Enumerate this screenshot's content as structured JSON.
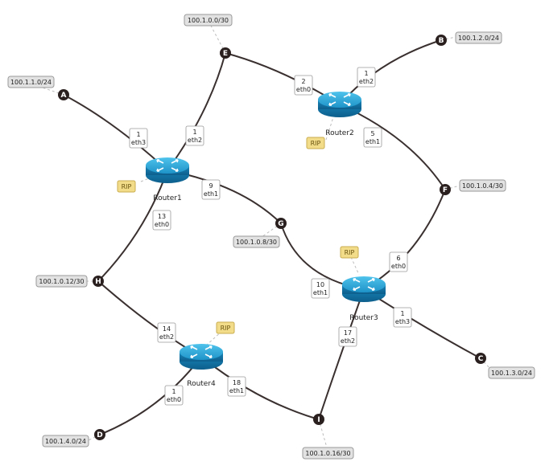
{
  "routers": [
    {
      "id": "r1",
      "label": "Router1"
    },
    {
      "id": "r2",
      "label": "Router2"
    },
    {
      "id": "r3",
      "label": "Router3"
    },
    {
      "id": "r4",
      "label": "Router4"
    }
  ],
  "rip_label": "RIP",
  "nodes": [
    {
      "id": "A",
      "label": "A"
    },
    {
      "id": "B",
      "label": "B"
    },
    {
      "id": "C",
      "label": "C"
    },
    {
      "id": "D",
      "label": "D"
    },
    {
      "id": "E",
      "label": "E"
    },
    {
      "id": "F",
      "label": "F"
    },
    {
      "id": "G",
      "label": "G"
    },
    {
      "id": "H",
      "label": "H"
    },
    {
      "id": "I",
      "label": "I"
    }
  ],
  "networks": [
    {
      "node": "A",
      "cidr": "100.1.1.0/24"
    },
    {
      "node": "B",
      "cidr": "100.1.2.0/24"
    },
    {
      "node": "C",
      "cidr": "100.1.3.0/24"
    },
    {
      "node": "D",
      "cidr": "100.1.4.0/24"
    },
    {
      "node": "E",
      "cidr": "100.1.0.0/30"
    },
    {
      "node": "F",
      "cidr": "100.1.0.4/30"
    },
    {
      "node": "G",
      "cidr": "100.1.0.8/30"
    },
    {
      "node": "H",
      "cidr": "100.1.0.12/30"
    },
    {
      "node": "I",
      "cidr": "100.1.0.16/30"
    }
  ],
  "interfaces": [
    {
      "router": "Router1",
      "peer": "A",
      "host": "1",
      "iface": "eth3"
    },
    {
      "router": "Router1",
      "peer": "E",
      "host": "1",
      "iface": "eth2"
    },
    {
      "router": "Router1",
      "peer": "G",
      "host": "9",
      "iface": "eth1"
    },
    {
      "router": "Router1",
      "peer": "H",
      "host": "13",
      "iface": "eth0"
    },
    {
      "router": "Router2",
      "peer": "E",
      "host": "2",
      "iface": "eth0"
    },
    {
      "router": "Router2",
      "peer": "B",
      "host": "1",
      "iface": "eth2"
    },
    {
      "router": "Router2",
      "peer": "F",
      "host": "5",
      "iface": "eth1"
    },
    {
      "router": "Router3",
      "peer": "F",
      "host": "6",
      "iface": "eth0"
    },
    {
      "router": "Router3",
      "peer": "G",
      "host": "10",
      "iface": "eth1"
    },
    {
      "router": "Router3",
      "peer": "C",
      "host": "1",
      "iface": "eth3"
    },
    {
      "router": "Router3",
      "peer": "I",
      "host": "17",
      "iface": "eth2"
    },
    {
      "router": "Router4",
      "peer": "H",
      "host": "14",
      "iface": "eth2"
    },
    {
      "router": "Router4",
      "peer": "I",
      "host": "18",
      "iface": "eth1"
    },
    {
      "router": "Router4",
      "peer": "D",
      "host": "1",
      "iface": "eth0"
    }
  ]
}
